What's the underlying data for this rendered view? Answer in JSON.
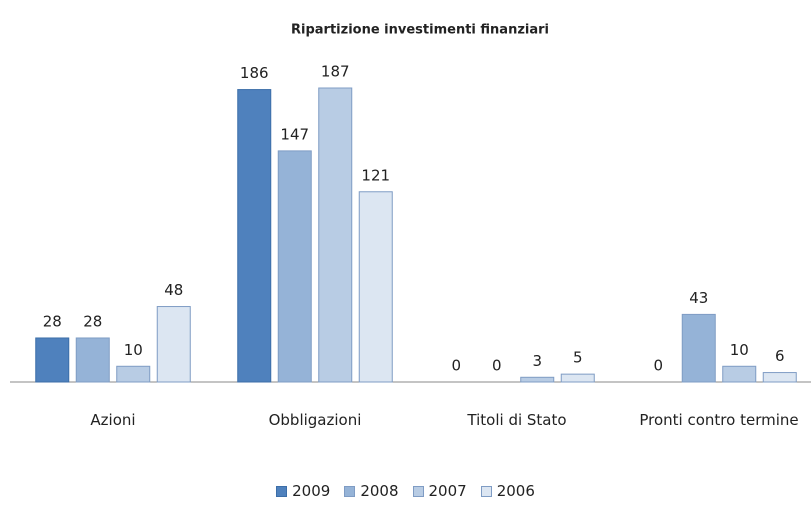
{
  "chart_data": {
    "type": "bar",
    "title": "Ripartizione investimenti finanziari",
    "categories": [
      "Azioni",
      "Obbligazioni",
      "Titoli di Stato",
      "Pronti contro termine"
    ],
    "series": [
      {
        "name": "2009",
        "color": "#4f81bd",
        "values": [
          28,
          186,
          0,
          0
        ]
      },
      {
        "name": "2008",
        "color": "#95b3d7",
        "values": [
          28,
          147,
          0,
          43
        ]
      },
      {
        "name": "2007",
        "color": "#b8cce4",
        "values": [
          10,
          187,
          3,
          10
        ]
      },
      {
        "name": "2006",
        "color": "#dce6f2",
        "values": [
          48,
          121,
          5,
          6
        ]
      }
    ],
    "legend": "bottom"
  }
}
